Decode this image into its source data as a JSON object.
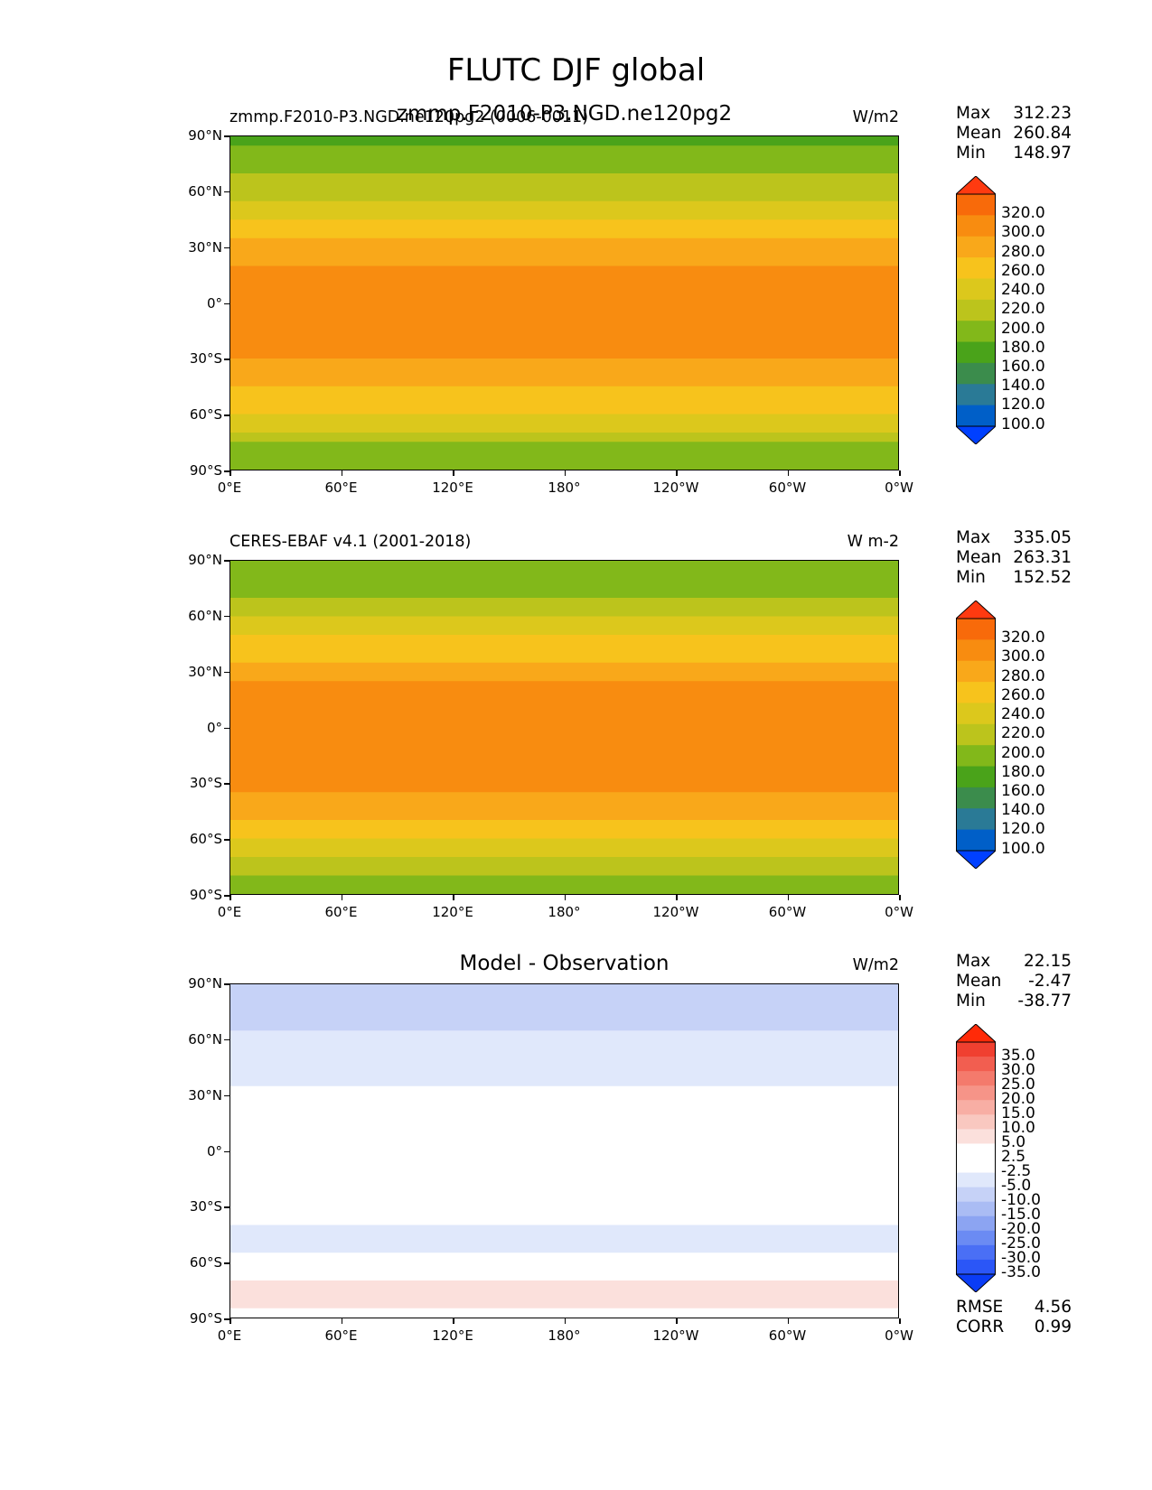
{
  "figure": {
    "title": "FLUTC DJF global"
  },
  "axes": {
    "yticks": [
      "90°N",
      "60°N",
      "30°N",
      "0°",
      "30°S",
      "60°S",
      "90°S"
    ],
    "xticks": [
      "0°E",
      "60°E",
      "120°E",
      "180°",
      "120°W",
      "60°W",
      "0°W"
    ]
  },
  "colors": {
    "fill_levels": [
      "#0040ff",
      "#005fc8",
      "#2a7a96",
      "#3b8c4c",
      "#4aa31a",
      "#82b81a",
      "#bcc41c",
      "#dcc81c",
      "#f7c31c",
      "#f9a81a",
      "#f88c10",
      "#f86a0a",
      "#ff3a10"
    ],
    "diff_levels": [
      "#0a3cf5",
      "#2b56f7",
      "#4a6ff5",
      "#6b8bf3",
      "#8ca4f2",
      "#aabcf4",
      "#c6d2f7",
      "#e0e8fb",
      "#ffffff",
      "#ffffff",
      "#fbe0dc",
      "#f9c8c0",
      "#f8aea4",
      "#f69488",
      "#f47a6c",
      "#f25e50",
      "#f04030",
      "#ff2a08"
    ]
  },
  "chart_data": [
    {
      "type": "heatmap",
      "title_left": "zmmp.F2010-P3.NGD.ne120pg2 (0006-0011)",
      "title_center": "zmmp.F2010-P3.NGD.ne120pg2",
      "units": "W/m2",
      "stats": {
        "max_label": "Max",
        "max": "312.23",
        "mean_label": "Mean",
        "mean": "260.84",
        "min_label": "Min",
        "min": "148.97"
      },
      "levels": [
        "320.0",
        "300.0",
        "280.0",
        "260.0",
        "240.0",
        "220.0",
        "200.0",
        "180.0",
        "160.0",
        "140.0",
        "120.0",
        "100.0"
      ],
      "latitude_profile": {
        "lat": [
          90,
          75,
          60,
          45,
          30,
          15,
          0,
          -15,
          -30,
          -45,
          -60,
          -75,
          -90
        ],
        "value": [
          175,
          190,
          215,
          240,
          265,
          285,
          282,
          285,
          280,
          260,
          240,
          200,
          180
        ]
      },
      "extent": {
        "lon": [
          0,
          360
        ],
        "lat": [
          -90,
          90
        ]
      }
    },
    {
      "type": "heatmap",
      "title_left": "CERES-EBAF v4.1 (2001-2018)",
      "title_center": "",
      "units": "W m-2",
      "stats": {
        "max_label": "Max",
        "max": "335.05",
        "mean_label": "Mean",
        "mean": "263.31",
        "min_label": "Min",
        "min": "152.52"
      },
      "levels": [
        "320.0",
        "300.0",
        "280.0",
        "260.0",
        "240.0",
        "220.0",
        "200.0",
        "180.0",
        "160.0",
        "140.0",
        "120.0",
        "100.0"
      ],
      "latitude_profile": {
        "lat": [
          90,
          75,
          60,
          45,
          30,
          15,
          0,
          -15,
          -30,
          -45,
          -60,
          -75,
          -90
        ],
        "value": [
          180,
          195,
          220,
          245,
          270,
          290,
          285,
          288,
          285,
          265,
          245,
          205,
          190
        ]
      },
      "extent": {
        "lon": [
          0,
          360
        ],
        "lat": [
          -90,
          90
        ]
      }
    },
    {
      "type": "heatmap",
      "title_left": "",
      "title_center": "Model - Observation",
      "units": "W/m2",
      "stats": {
        "max_label": "Max",
        "max": "22.15",
        "mean_label": "Mean",
        "mean": "-2.47",
        "min_label": "Min",
        "min": "-38.77"
      },
      "levels": [
        "35.0",
        "30.0",
        "25.0",
        "20.0",
        "15.0",
        "10.0",
        "5.0",
        "2.5",
        "-2.5",
        "-5.0",
        "-10.0",
        "-15.0",
        "-20.0",
        "-25.0",
        "-30.0",
        "-35.0"
      ],
      "extra_stats": {
        "rmse_label": "RMSE",
        "rmse": "4.56",
        "corr_label": "CORR",
        "corr": "0.99"
      },
      "latitude_profile": {
        "lat": [
          90,
          75,
          60,
          45,
          30,
          15,
          0,
          -15,
          -30,
          -45,
          -60,
          -75,
          -90
        ],
        "value": [
          -8,
          -6,
          -4,
          -3,
          -2,
          -1,
          2,
          -2,
          -1,
          -3,
          -2,
          4,
          2
        ]
      },
      "extent": {
        "lon": [
          0,
          360
        ],
        "lat": [
          -90,
          90
        ]
      }
    }
  ]
}
